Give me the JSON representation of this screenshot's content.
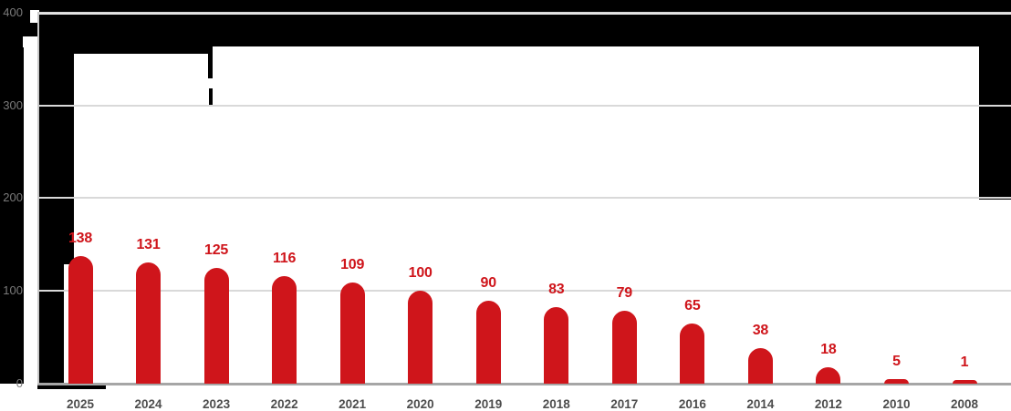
{
  "chart_data": {
    "type": "bar",
    "categories": [
      "2025",
      "2024",
      "2023",
      "2022",
      "2021",
      "2020",
      "2019",
      "2018",
      "2017",
      "2016",
      "2014",
      "2012",
      "2010",
      "2008"
    ],
    "values": [
      138,
      131,
      125,
      116,
      109,
      100,
      90,
      83,
      79,
      65,
      38,
      18,
      5,
      1
    ],
    "value_labels": [
      "138",
      "131",
      "125",
      "116",
      "109",
      "100",
      "90",
      "83",
      "79",
      "65",
      "38",
      "18",
      "5",
      "1"
    ],
    "ytick_labels": [
      "400",
      "300",
      "200",
      "100",
      "0"
    ],
    "ytick_values": [
      400,
      300,
      200,
      100,
      0
    ],
    "ylim": [
      0,
      400
    ],
    "title": "",
    "xlabel": "",
    "ylabel": "",
    "grid": "horizontal",
    "legend_position": "none",
    "bar_color": "#cf151b",
    "value_label_color": "#cf151b",
    "year_label_color": "#4d4d4d",
    "ytick_color": "#7a7a7a",
    "gridline_color": "#d9d9d9",
    "axisline_color": "#a6a6a6",
    "redaction_color": "#000000"
  }
}
